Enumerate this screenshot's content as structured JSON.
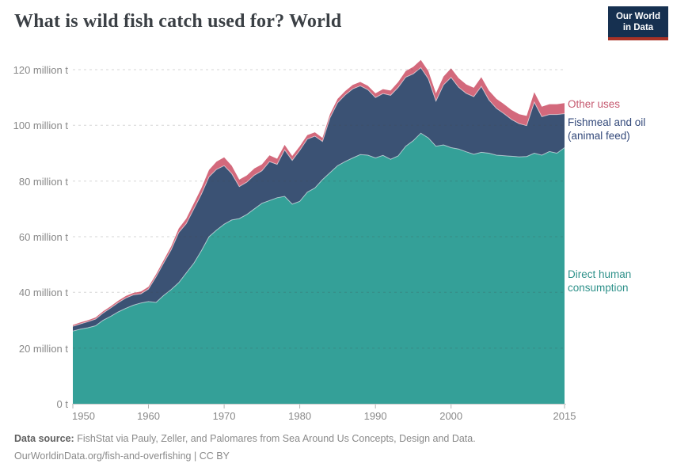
{
  "header": {
    "title": "What is wild fish catch used for? World",
    "logo": {
      "line1": "Our World",
      "line2": "in Data",
      "bg_color": "#163050",
      "accent_color": "#a93226"
    }
  },
  "footer": {
    "data_source_label": "Data source:",
    "data_source_text": " FishStat via Pauly, Zeller, and Palomares from Sea Around Us Concepts, Design and Data.",
    "url": "OurWorldinData.org/fish-and-overfishing",
    "separator": " | ",
    "license": "CC BY"
  },
  "chart_data": {
    "type": "area",
    "stacked": true,
    "title": "What is wild fish catch used for? World",
    "xlabel": "",
    "ylabel": "",
    "ylim": [
      0,
      125
    ],
    "grid": "dashed-horizontal",
    "legend_position": "right-of-plot",
    "unit": "million tonnes",
    "years": [
      1950,
      1951,
      1952,
      1953,
      1954,
      1955,
      1956,
      1957,
      1958,
      1959,
      1960,
      1961,
      1962,
      1963,
      1964,
      1965,
      1966,
      1967,
      1968,
      1969,
      1970,
      1971,
      1972,
      1973,
      1974,
      1975,
      1976,
      1977,
      1978,
      1979,
      1980,
      1981,
      1982,
      1983,
      1984,
      1985,
      1986,
      1987,
      1988,
      1989,
      1990,
      1991,
      1992,
      1993,
      1994,
      1995,
      1996,
      1997,
      1998,
      1999,
      2000,
      2001,
      2002,
      2003,
      2004,
      2005,
      2006,
      2007,
      2008,
      2009,
      2010,
      2011,
      2012,
      2013,
      2014,
      2015
    ],
    "series": [
      {
        "name": "Direct human consumption",
        "label_lines": [
          "Direct human",
          "consumption"
        ],
        "color": "#34a098",
        "label_color": "#2e918a",
        "values": [
          26.1,
          26.8,
          27.3,
          28.0,
          30.0,
          31.4,
          33.0,
          34.3,
          35.4,
          36.2,
          36.7,
          36.4,
          38.9,
          41.0,
          43.5,
          47.0,
          50.5,
          55.0,
          60.0,
          62.4,
          64.5,
          66.0,
          66.5,
          68.0,
          70.0,
          72.0,
          73.0,
          74.0,
          74.5,
          71.7,
          72.7,
          76.0,
          77.5,
          80.5,
          83.0,
          85.5,
          87.0,
          88.3,
          89.5,
          89.3,
          88.3,
          89.2,
          87.8,
          89.0,
          92.5,
          94.5,
          97.2,
          95.5,
          92.5,
          93.0,
          92.0,
          91.5,
          90.5,
          89.6,
          90.3,
          90.0,
          89.3,
          89.1,
          88.9,
          88.7,
          88.8,
          90.0,
          89.3,
          90.6,
          90.0,
          92.0
        ]
      },
      {
        "name": "Fishmeal and oil (animal feed)",
        "label_lines": [
          "Fishmeal and oil",
          "(animal feed)"
        ],
        "color": "#3b5274",
        "label_color": "#33497a",
        "values": [
          1.7,
          1.9,
          2.2,
          2.4,
          2.6,
          3.0,
          3.3,
          3.7,
          3.7,
          3.3,
          4.5,
          9.2,
          11.6,
          14.3,
          18.0,
          17.7,
          19.5,
          20.3,
          21.5,
          21.8,
          21.0,
          16.7,
          11.5,
          11.6,
          12.1,
          11.7,
          14.0,
          12.0,
          16.7,
          15.7,
          18.3,
          19.1,
          18.6,
          13.7,
          19.7,
          22.6,
          23.9,
          24.8,
          24.7,
          23.5,
          21.7,
          22.2,
          23.0,
          24.6,
          24.8,
          24.0,
          23.5,
          21.2,
          16.2,
          21.5,
          25.2,
          22.2,
          21.0,
          20.7,
          23.7,
          19.1,
          16.8,
          15.1,
          13.2,
          11.9,
          11.1,
          18.3,
          13.8,
          13.3,
          13.9,
          12.2
        ]
      },
      {
        "name": "Other uses",
        "label_lines": [
          "Other uses"
        ],
        "color": "#d3697c",
        "label_color": "#c65a70",
        "values": [
          0.5,
          0.5,
          0.5,
          0.6,
          0.6,
          0.6,
          0.7,
          0.7,
          0.7,
          0.8,
          0.8,
          0.9,
          1.0,
          1.2,
          1.5,
          1.8,
          2.0,
          2.2,
          2.5,
          2.8,
          3.0,
          2.8,
          2.5,
          2.4,
          2.4,
          2.3,
          2.2,
          2.0,
          1.8,
          1.6,
          1.5,
          1.4,
          1.4,
          1.3,
          1.3,
          1.4,
          1.4,
          1.4,
          1.4,
          1.4,
          1.5,
          1.6,
          1.7,
          1.9,
          2.2,
          2.5,
          2.8,
          2.8,
          2.8,
          3.0,
          3.3,
          3.3,
          3.2,
          3.2,
          3.3,
          3.4,
          3.4,
          3.4,
          3.4,
          3.4,
          3.5,
          3.6,
          3.6,
          3.7,
          3.7,
          3.8
        ]
      }
    ],
    "yticks": [
      {
        "value": 0,
        "label": "0 t"
      },
      {
        "value": 20,
        "label": "20 million t"
      },
      {
        "value": 40,
        "label": "40 million t"
      },
      {
        "value": 60,
        "label": "60 million t"
      },
      {
        "value": 80,
        "label": "80 million t"
      },
      {
        "value": 100,
        "label": "100 million t"
      },
      {
        "value": 120,
        "label": "120 million t"
      }
    ],
    "xticks": [
      {
        "value": 1950,
        "label": "1950"
      },
      {
        "value": 1960,
        "label": "1960"
      },
      {
        "value": 1970,
        "label": "1970"
      },
      {
        "value": 1980,
        "label": "1980"
      },
      {
        "value": 1990,
        "label": "1990"
      },
      {
        "value": 2000,
        "label": "2000"
      },
      {
        "value": 2015,
        "label": "2015"
      }
    ]
  }
}
